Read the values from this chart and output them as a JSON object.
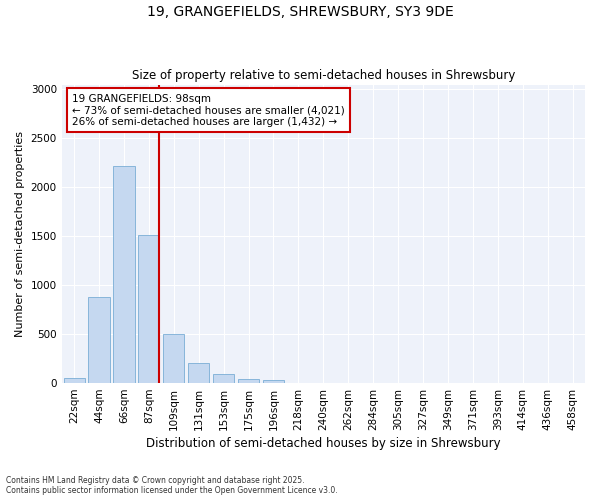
{
  "title1": "19, GRANGEFIELDS, SHREWSBURY, SY3 9DE",
  "title2": "Size of property relative to semi-detached houses in Shrewsbury",
  "xlabel": "Distribution of semi-detached houses by size in Shrewsbury",
  "ylabel": "Number of semi-detached properties",
  "categories": [
    "22sqm",
    "44sqm",
    "66sqm",
    "87sqm",
    "109sqm",
    "131sqm",
    "153sqm",
    "175sqm",
    "196sqm",
    "218sqm",
    "240sqm",
    "262sqm",
    "284sqm",
    "305sqm",
    "327sqm",
    "349sqm",
    "371sqm",
    "393sqm",
    "414sqm",
    "436sqm",
    "458sqm"
  ],
  "values": [
    55,
    880,
    2220,
    1510,
    500,
    200,
    90,
    45,
    30,
    0,
    0,
    0,
    0,
    0,
    0,
    0,
    0,
    0,
    0,
    0,
    0
  ],
  "bar_color": "#c5d8f0",
  "bar_edge_color": "#7aaed6",
  "vline_color": "#cc0000",
  "annotation_text_line1": "19 GRANGEFIELDS: 98sqm",
  "annotation_text_line2": "← 73% of semi-detached houses are smaller (4,021)",
  "annotation_text_line3": "26% of semi-detached houses are larger (1,432) →",
  "annotation_box_color": "#ffffff",
  "annotation_box_edge_color": "#cc0000",
  "ylim": [
    0,
    3050
  ],
  "yticks": [
    0,
    500,
    1000,
    1500,
    2000,
    2500,
    3000
  ],
  "footer1": "Contains HM Land Registry data © Crown copyright and database right 2025.",
  "footer2": "Contains public sector information licensed under the Open Government Licence v3.0.",
  "bg_color": "#ffffff",
  "plot_bg_color": "#eef2fa"
}
